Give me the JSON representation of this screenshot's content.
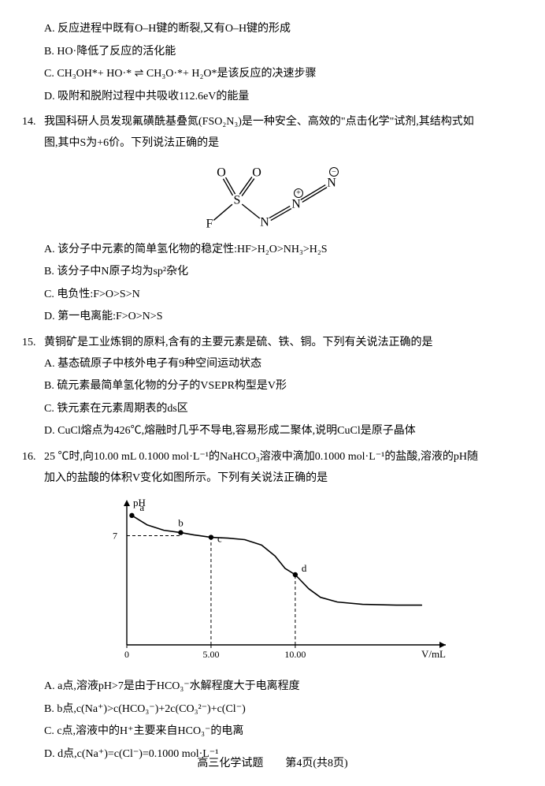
{
  "q13_options": {
    "A": "A. 反应进程中既有O–H键的断裂,又有O–H键的形成",
    "B": "B. HO·降低了反应的活化能",
    "C": "C. CH₃OH*+ HO·* ⇌ CH₃O·*+ H₂O*是该反应的决速步骤",
    "D": "D. 吸附和脱附过程中共吸收112.6eV的能量"
  },
  "q14": {
    "num": "14.",
    "stem_l1": "我国科研人员发现氟磺酰基叠氮(FSO₂N₃)是一种安全、高效的\"点击化学\"试剂,其结构式如",
    "stem_l2": "图,其中S为+6价。下列说法正确的是",
    "options": {
      "A": "A. 该分子中元素的简单氢化物的稳定性:HF>H₂O>NH₃>H₂S",
      "B": "B. 该分子中N原子均为sp²杂化",
      "C": "C. 电负性:F>O>S>N",
      "D": "D. 第一电离能:F>O>N>S"
    },
    "diagram": {
      "labels": {
        "O1": "O",
        "O2": "O",
        "S": "S",
        "F": "F",
        "N1": "N",
        "N2": "N",
        "N3": "N",
        "charge_plus": "⊕",
        "charge_minus": "⊖"
      },
      "stroke": "#000000",
      "fill": "#ffffff",
      "font_size": 16
    }
  },
  "q15": {
    "num": "15.",
    "stem": "黄铜矿是工业炼铜的原料,含有的主要元素是硫、铁、铜。下列有关说法正确的是",
    "options": {
      "A": "A. 基态硫原子中核外电子有9种空间运动状态",
      "B": "B. 硫元素最简单氢化物的分子的VSEPR构型是V形",
      "C": "C. 铁元素在元素周期表的ds区",
      "D": "D. CuCl熔点为426℃,熔融时几乎不导电,容易形成二聚体,说明CuCl是原子晶体"
    }
  },
  "q16": {
    "num": "16.",
    "stem_l1": "25 ℃时,向10.00 mL 0.1000 mol·L⁻¹的NaHCO₃溶液中滴加0.1000 mol·L⁻¹的盐酸,溶液的pH随",
    "stem_l2": "加入的盐酸的体积V变化如图所示。下列有关说法正确的是",
    "options": {
      "A": "A. a点,溶液pH>7是由于HCO₃⁻水解程度大于电离程度",
      "B": "B. b点,c(Na⁺)>c(HCO₃⁻)+2c(CO₃²⁻)+c(Cl⁻)",
      "C": "C. c点,溶液中的H⁺主要来自HCO₃⁻的电离",
      "D": "D. d点,c(Na⁺)=c(Cl⁻)=0.1000 mol·L⁻¹"
    },
    "chart": {
      "type": "line",
      "xlabel": "V/mL",
      "ylabel": "pH",
      "xlim": [
        0,
        18
      ],
      "ylim": [
        0,
        9
      ],
      "xticks": [
        0,
        5.0,
        10.0
      ],
      "yticks": [
        0,
        7
      ],
      "points": {
        "a": {
          "x": 0.3,
          "y": 8.3,
          "label": "a"
        },
        "b": {
          "x": 3.2,
          "y": 7.2,
          "label": "b"
        },
        "c": {
          "x": 5.0,
          "y": 6.9,
          "label": "c"
        },
        "d": {
          "x": 10.0,
          "y": 4.5,
          "label": "d"
        }
      },
      "curve": [
        {
          "x": 0.3,
          "y": 8.3
        },
        {
          "x": 1.2,
          "y": 7.7
        },
        {
          "x": 2.2,
          "y": 7.35
        },
        {
          "x": 3.2,
          "y": 7.2
        },
        {
          "x": 4.0,
          "y": 7.05
        },
        {
          "x": 5.0,
          "y": 6.9
        },
        {
          "x": 6.0,
          "y": 6.85
        },
        {
          "x": 7.0,
          "y": 6.75
        },
        {
          "x": 8.0,
          "y": 6.4
        },
        {
          "x": 8.8,
          "y": 5.7
        },
        {
          "x": 9.4,
          "y": 4.9
        },
        {
          "x": 10.0,
          "y": 4.5
        },
        {
          "x": 10.8,
          "y": 3.6
        },
        {
          "x": 11.5,
          "y": 3.05
        },
        {
          "x": 12.5,
          "y": 2.75
        },
        {
          "x": 14.0,
          "y": 2.6
        },
        {
          "x": 16.0,
          "y": 2.55
        },
        {
          "x": 17.5,
          "y": 2.55
        }
      ],
      "dash_x": [
        5.0,
        10.0
      ],
      "dash_y": 7,
      "stroke": "#000000",
      "bg": "#ffffff",
      "font_size": 12,
      "line_width": 1.6,
      "marker_r": 3.2
    }
  },
  "footer": {
    "left": "高三化学试题",
    "right": "第4页(共8页)"
  }
}
